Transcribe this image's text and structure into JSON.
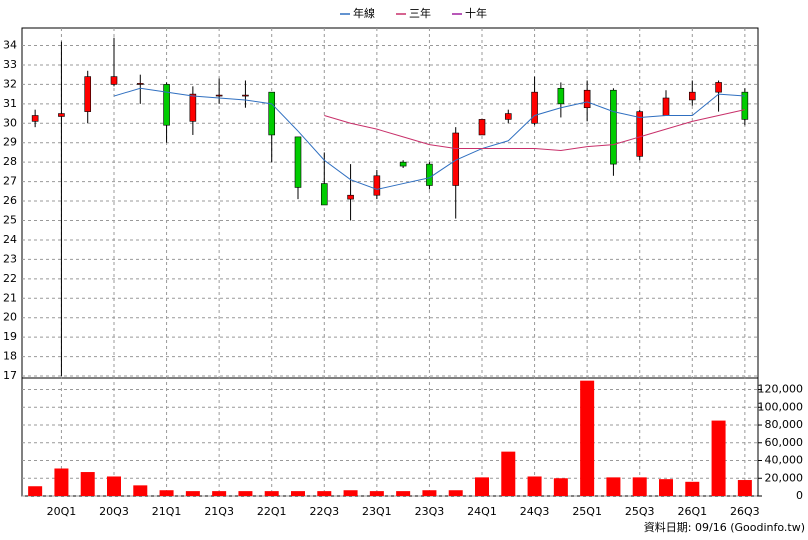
{
  "chart_data": [
    {
      "type": "candlestick",
      "categories": [
        null,
        "20Q1",
        null,
        "20Q3",
        null,
        "21Q1",
        null,
        "21Q3",
        null,
        "22Q1",
        null,
        "22Q3",
        null,
        "23Q1",
        null,
        "23Q3",
        null,
        "24Q1",
        null,
        "24Q3",
        null,
        "25Q1",
        null,
        "25Q3",
        null,
        "26Q1",
        null,
        "26Q3"
      ],
      "open": [
        30.1,
        30.35,
        30.6,
        32.0,
        32.0,
        32.0,
        30.1,
        31.4,
        31.4,
        31.6,
        29.3,
        26.9,
        26.1,
        26.3,
        28.0,
        27.9,
        26.8,
        29.4,
        30.2,
        30.0,
        31.8,
        30.8,
        31.7,
        28.3,
        30.4,
        31.2,
        31.6,
        31.6
      ],
      "close": [
        30.4,
        30.5,
        32.4,
        32.4,
        32.05,
        29.9,
        31.5,
        31.45,
        31.45,
        29.4,
        26.7,
        25.8,
        26.3,
        27.3,
        27.8,
        26.8,
        29.5,
        30.2,
        30.5,
        31.6,
        31.0,
        31.7,
        27.9,
        30.6,
        31.3,
        31.6,
        32.1,
        30.2
      ],
      "high": [
        30.7,
        34.2,
        32.7,
        34.4,
        32.5,
        32.1,
        31.9,
        32.3,
        32.2,
        31.6,
        29.3,
        28.5,
        27.9,
        27.6,
        28.1,
        28.0,
        29.8,
        30.2,
        30.7,
        32.4,
        32.1,
        32.2,
        31.8,
        30.7,
        31.7,
        32.2,
        32.2,
        31.8
      ],
      "low": [
        29.8,
        17.0,
        30.0,
        31.9,
        31.0,
        29.0,
        29.4,
        31.0,
        30.8,
        28.0,
        26.1,
        25.8,
        25.0,
        26.1,
        27.7,
        26.6,
        25.1,
        29.4,
        30.0,
        29.9,
        30.3,
        30.1,
        27.3,
        28.1,
        30.4,
        30.9,
        30.6,
        29.9
      ],
      "up_color": "#ff0000",
      "down_color": "#00cc00",
      "series": [
        {
          "name": "年線",
          "color": "#2f6fc0",
          "values": [
            null,
            null,
            null,
            31.4,
            31.8,
            31.6,
            31.4,
            31.3,
            31.2,
            31.0,
            29.6,
            28.1,
            27.1,
            26.6,
            26.9,
            27.2,
            28.1,
            28.7,
            29.1,
            30.4,
            30.8,
            31.1,
            30.6,
            30.3,
            30.4,
            30.4,
            31.5,
            31.4
          ]
        },
        {
          "name": "三年",
          "color": "#c8306a",
          "values": [
            null,
            null,
            null,
            null,
            null,
            null,
            null,
            null,
            null,
            null,
            null,
            30.4,
            30.0,
            29.7,
            29.3,
            28.9,
            28.7,
            28.7,
            28.7,
            28.7,
            28.6,
            28.8,
            28.9,
            29.3,
            29.7,
            30.1,
            30.4,
            30.7
          ]
        },
        {
          "name": "十年",
          "color": "#a020a0",
          "values": [
            null,
            null,
            null,
            null,
            null,
            null,
            null,
            null,
            null,
            null,
            null,
            null,
            null,
            null,
            null,
            null,
            null,
            null,
            null,
            null,
            null,
            null,
            null,
            null,
            null,
            null,
            null,
            null
          ]
        }
      ],
      "ylim": [
        16.9,
        34.9
      ],
      "yticks": [
        17,
        18,
        19,
        20,
        21,
        22,
        23,
        24,
        25,
        26,
        27,
        28,
        29,
        30,
        31,
        32,
        33,
        34
      ],
      "grid": true
    },
    {
      "type": "bar",
      "values": [
        11000,
        31000,
        27000,
        22000,
        12000,
        6500,
        5500,
        5500,
        5500,
        5500,
        5500,
        5500,
        6500,
        5500,
        5500,
        6500,
        6500,
        21000,
        50000,
        22000,
        20000,
        130000,
        21000,
        21000,
        19000,
        16000,
        85000,
        18000
      ],
      "color": "#ff0000",
      "ylim": [
        0,
        133000
      ],
      "yticks": [
        0,
        {
          "value": 20000,
          "label": "20,000"
        },
        {
          "value": 40000,
          "label": "40,000"
        },
        {
          "value": 60000,
          "label": "60,000"
        },
        {
          "value": 80000,
          "label": "80,000"
        },
        {
          "value": 100000,
          "label": "100,000"
        },
        {
          "value": 120000,
          "label": "120,000"
        }
      ],
      "grid": true,
      "footnote": "資料日期: 09/16   (Goodinfo.tw)"
    }
  ]
}
